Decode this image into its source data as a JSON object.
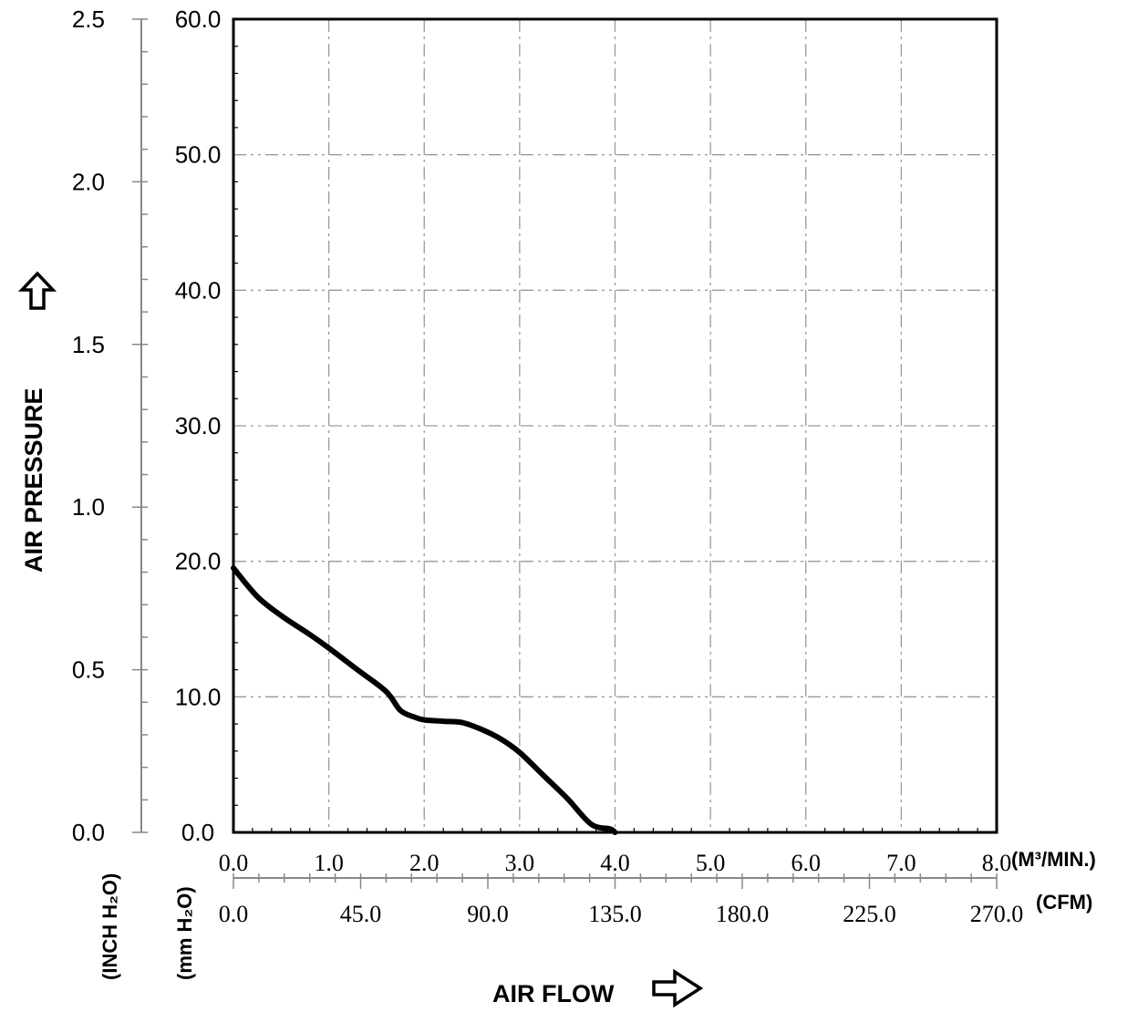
{
  "chart_data": {
    "type": "line",
    "x_unit_primary": "(M³/MIN.)",
    "x_unit_secondary": "(CFM)",
    "y_unit_primary": "(mm H₂O)",
    "y_unit_secondary": "(INCH H₂O)",
    "xlabel": "AIR FLOW",
    "ylabel": "AIR PRESSURE",
    "xlim": [
      0,
      8
    ],
    "ylim": [
      0,
      60
    ],
    "grid": true,
    "x_ticks_m3": [
      "0.0",
      "1.0",
      "2.0",
      "3.0",
      "4.0",
      "5.0",
      "6.0",
      "7.0",
      "8.0"
    ],
    "x_ticks_cfm": [
      "0.0",
      "45.0",
      "90.0",
      "135.0",
      "180.0",
      "225.0",
      "270.0"
    ],
    "y_ticks_mm": [
      "0.0",
      "10.0",
      "20.0",
      "30.0",
      "40.0",
      "50.0",
      "60.0"
    ],
    "y_ticks_inch": [
      "0.0",
      "0.5",
      "1.0",
      "1.5",
      "2.0",
      "2.5"
    ],
    "series": [
      {
        "x": [
          0.0,
          0.25,
          0.5,
          0.8,
          1.0,
          1.3,
          1.6,
          1.75,
          1.9,
          2.0,
          2.2,
          2.4,
          2.6,
          2.8,
          3.0,
          3.25,
          3.5,
          3.75,
          3.95,
          4.0
        ],
        "y": [
          19.5,
          17.4,
          16.0,
          14.6,
          13.6,
          12.0,
          10.4,
          9.0,
          8.5,
          8.3,
          8.2,
          8.1,
          7.6,
          6.9,
          5.9,
          4.2,
          2.5,
          0.6,
          0.25,
          0.0
        ]
      }
    ]
  }
}
